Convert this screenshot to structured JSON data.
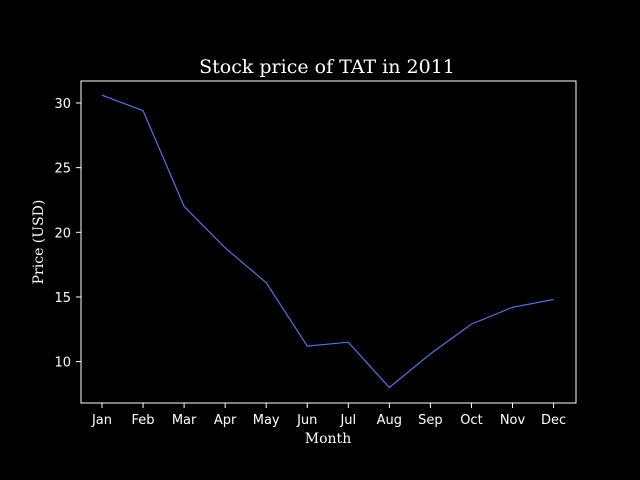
{
  "chart_data": {
    "type": "line",
    "title": "Stock price of TAT in 2011",
    "xlabel": "Month",
    "ylabel": "Price (USD)",
    "categories": [
      "Jan",
      "Feb",
      "Mar",
      "Apr",
      "May",
      "Jun",
      "Jul",
      "Aug",
      "Sep",
      "Oct",
      "Nov",
      "Dec"
    ],
    "series": [
      {
        "values": [
          30.6,
          29.4,
          22.0,
          18.8,
          16.1,
          11.2,
          11.5,
          8.0,
          10.6,
          12.9,
          14.2,
          14.8
        ],
        "color": "#5b6ee1"
      }
    ],
    "yticks": [
      10,
      15,
      20,
      25,
      30
    ],
    "ylim": [
      6.8,
      31.7
    ],
    "grid": false,
    "legend": "none",
    "colors": {
      "background": "#000000",
      "axes": "#ffffff",
      "text": "#ffffff",
      "line": "#5b6ee1"
    }
  }
}
